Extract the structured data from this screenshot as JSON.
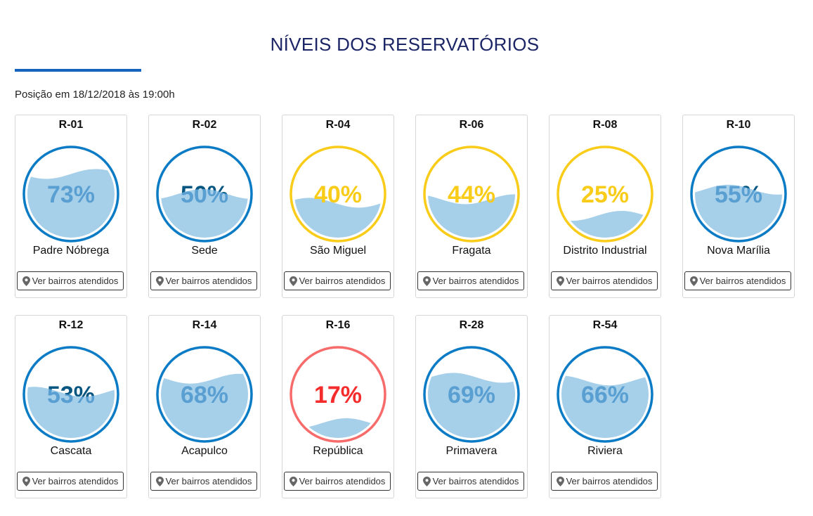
{
  "header": {
    "title": "NÍVEIS DOS RESERVATÓRIOS",
    "position": "Posição em 18/12/2018 às 19:00h"
  },
  "colors": {
    "blue": "#0a7bc4",
    "blue_text": "#045681",
    "yellow": "#f9cc1a",
    "red": "#f76b6b",
    "red_text": "#f52c2c",
    "water": "#a6cfea"
  },
  "button_label": "Ver bairros atendidos",
  "reservoirs": [
    {
      "code": "R-01",
      "name": "Padre Nóbrega",
      "level": 73,
      "status": "blue"
    },
    {
      "code": "R-02",
      "name": "Sede",
      "level": 50,
      "status": "blue"
    },
    {
      "code": "R-04",
      "name": "São Miguel",
      "level": 40,
      "status": "yellow"
    },
    {
      "code": "R-06",
      "name": "Fragata",
      "level": 44,
      "status": "yellow"
    },
    {
      "code": "R-08",
      "name": "Distrito Industrial",
      "level": 25,
      "status": "yellow"
    },
    {
      "code": "R-10",
      "name": "Nova Marília",
      "level": 55,
      "status": "blue"
    },
    {
      "code": "R-12",
      "name": "Cascata",
      "level": 53,
      "status": "blue"
    },
    {
      "code": "R-14",
      "name": "Acapulco",
      "level": 68,
      "status": "blue"
    },
    {
      "code": "R-16",
      "name": "República",
      "level": 17,
      "status": "red"
    },
    {
      "code": "R-28",
      "name": "Primavera",
      "level": 69,
      "status": "blue"
    },
    {
      "code": "R-54",
      "name": "Riviera",
      "level": 66,
      "status": "blue"
    }
  ]
}
